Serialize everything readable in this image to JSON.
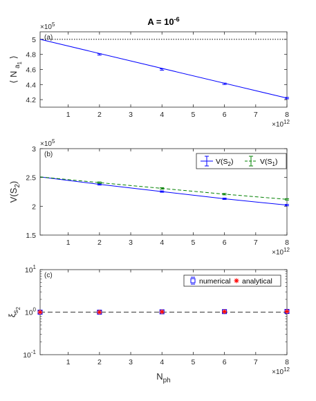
{
  "chart_data": [
    {
      "type": "line",
      "panel_label": "(a)",
      "title": "A = 10",
      "title_exponent": "-6",
      "ylabel_main": "⟨ N",
      "ylabel_sub": "a",
      "ylabel_subsub": "1",
      "ylabel_end": "⟩",
      "y_multiplier": "×10",
      "y_multiplier_exp": "5",
      "x_multiplier": "×10",
      "x_multiplier_exp": "12",
      "xlim": [
        0.1,
        8
      ],
      "ylim": [
        4.1,
        5.1
      ],
      "xticks": [
        "1",
        "2",
        "3",
        "4",
        "5",
        "6",
        "7",
        "8"
      ],
      "yticks": [
        "4.2",
        "4.4",
        "4.6",
        "4.8",
        "5"
      ],
      "reference_line": {
        "y": 5.0,
        "style": "dotted"
      },
      "series": [
        {
          "color": "#0000ff",
          "x": [
            0.1,
            8
          ],
          "y": [
            5.0,
            4.22
          ],
          "errorbars_x": [
            2,
            4,
            6,
            8
          ],
          "errorbars_y": [
            4.8,
            4.6,
            4.41,
            4.22
          ]
        }
      ]
    },
    {
      "type": "line",
      "panel_label": "(b)",
      "ylabel": "V(S",
      "ylabel_sub": "2",
      "ylabel_end": ")",
      "y_multiplier": "×10",
      "y_multiplier_exp": "5",
      "x_multiplier": "×10",
      "x_multiplier_exp": "12",
      "xlim": [
        0.1,
        8
      ],
      "ylim": [
        1.5,
        3.0
      ],
      "xticks": [
        "1",
        "2",
        "3",
        "4",
        "5",
        "6",
        "7",
        "8"
      ],
      "yticks": [
        "1.5",
        "2",
        "2.5",
        "3"
      ],
      "legend_position": "top-right",
      "series": [
        {
          "name": "V(S",
          "name_sub": "2",
          "name_end": ")",
          "color": "#0000ff",
          "style": "solid",
          "x": [
            0.1,
            2,
            4,
            6,
            8
          ],
          "y": [
            2.51,
            2.38,
            2.255,
            2.13,
            2.02
          ]
        },
        {
          "name": "V(S",
          "name_sub": "1",
          "name_end": ")",
          "color": "#008000",
          "style": "dashed",
          "x": [
            0.1,
            2,
            4,
            6,
            8
          ],
          "y": [
            2.51,
            2.41,
            2.31,
            2.21,
            2.12
          ]
        }
      ]
    },
    {
      "type": "scatter",
      "panel_label": "(c)",
      "ylabel": "ξ",
      "ylabel_sub": "s",
      "ylabel_subsub": "2",
      "xlabel": "N",
      "xlabel_sub": "ph",
      "x_multiplier": "×10",
      "x_multiplier_exp": "12",
      "xlim": [
        0.1,
        8
      ],
      "ylim": [
        0.1,
        10
      ],
      "y_scale": "log",
      "xticks": [
        "1",
        "2",
        "3",
        "4",
        "5",
        "6",
        "7",
        "8"
      ],
      "yticks": [
        {
          "base": "10",
          "exp": "1",
          "value": 10
        },
        {
          "base": "10",
          "exp": "0",
          "value": 1
        },
        {
          "base": "10",
          "exp": "-1",
          "value": 0.1
        }
      ],
      "reference_line": {
        "y": 1,
        "style": "dashed"
      },
      "legend_position": "top-right",
      "series": [
        {
          "name": "numerical",
          "color": "#0000ff",
          "marker": "square",
          "x": [
            0.1,
            2,
            4,
            6,
            8
          ],
          "y": [
            1,
            1,
            1.02,
            1.03,
            1.04
          ]
        },
        {
          "name": "analytical",
          "color": "#ff0000",
          "marker": "asterisk",
          "x": [
            0.1,
            2,
            4,
            6,
            8
          ],
          "y": [
            1,
            1,
            1.02,
            1.03,
            1.04
          ]
        }
      ]
    }
  ]
}
